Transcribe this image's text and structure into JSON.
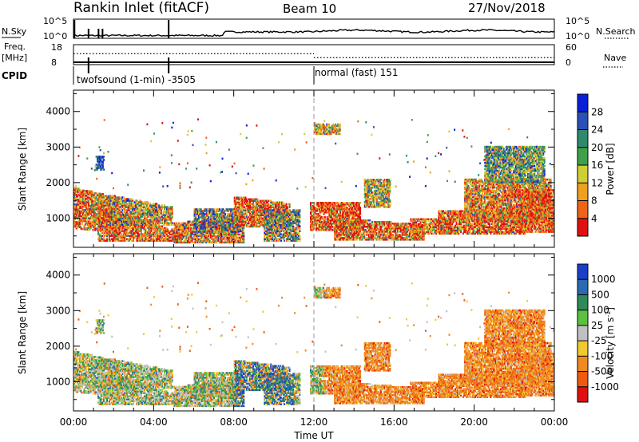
{
  "header": {
    "station": "Rankin Inlet (fitACF)",
    "beam": "Beam 10",
    "date": "27/Nov/2018"
  },
  "top_panels": {
    "nsky_label": "N.Sky",
    "nsky_ticks": [
      "10^5",
      "10^0"
    ],
    "nsearch_label": "N.Search",
    "nsearch_ticks": [
      "10^5",
      "10^0"
    ],
    "freq_label": "Freq.",
    "freq_unit": "[MHz]",
    "freq_ticks": [
      "18",
      "8"
    ],
    "nave_label": "Nave",
    "nave_ticks": [
      "60",
      "0"
    ],
    "cpid_label": "CPID",
    "cpid_segments": [
      {
        "label": "twofsound (1-min) -3505",
        "start_hour": 0
      },
      {
        "label": "normal (fast) 151",
        "start_hour": 12
      }
    ],
    "nsky_spikes_hours": [
      0.05,
      0.75,
      1.25,
      1.45,
      4.75
    ],
    "freq_dotted_levels": {
      "before_noon": 0.55,
      "after_noon": 0.35
    }
  },
  "chart_data": [
    {
      "type": "heatmap",
      "title": "Power",
      "xlabel": "Time UT",
      "ylabel": "Slant Range [km]",
      "xlim": [
        0,
        24
      ],
      "ylim": [
        180,
        4600
      ],
      "xticks": [
        "00:00",
        "04:00",
        "08:00",
        "12:00",
        "16:00",
        "20:00",
        "00:00"
      ],
      "yticks": [
        "1000",
        "2000",
        "3000",
        "4000"
      ],
      "colorbar": {
        "label": "Power [dB]",
        "ticks": [
          "4",
          "8",
          "12",
          "16",
          "20",
          "24",
          "28"
        ],
        "colors": [
          "#0a1fd6",
          "#2c4fb8",
          "#2f8a6d",
          "#3fa04a",
          "#cfcf35",
          "#f0a020",
          "#f06418",
          "#e01010"
        ]
      },
      "vertical_marker_hour": 12
    },
    {
      "type": "heatmap",
      "title": "Velocity",
      "xlabel": "Time UT",
      "ylabel": "Slant Range [km]",
      "xlim": [
        0,
        24
      ],
      "ylim": [
        180,
        4600
      ],
      "xticks": [
        "00:00",
        "04:00",
        "08:00",
        "12:00",
        "16:00",
        "20:00",
        "00:00"
      ],
      "yticks": [
        "1000",
        "2000",
        "3000",
        "4000"
      ],
      "colorbar": {
        "label": "Velocity [m s",
        "label_superscript": "-1",
        "label_close": "]",
        "ticks": [
          "1000",
          "500",
          "100",
          "25",
          "-25",
          "-100",
          "-500",
          "-1000"
        ],
        "colors": [
          "#1a3fc8",
          "#2c6ab0",
          "#2e8a5a",
          "#5cc040",
          "#c0c0c0",
          "#f0c830",
          "#f08a20",
          "#ee5a10",
          "#e01010"
        ]
      },
      "vertical_marker_hour": 12
    }
  ]
}
